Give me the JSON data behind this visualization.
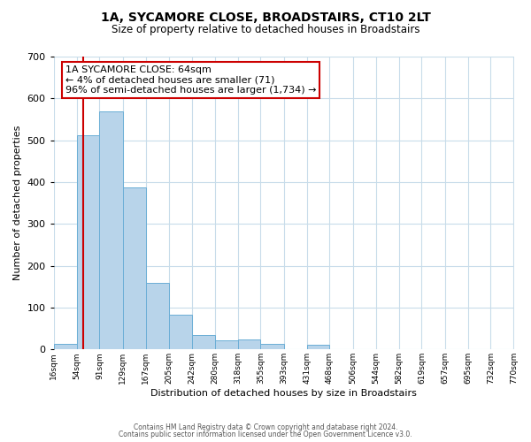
{
  "title": "1A, SYCAMORE CLOSE, BROADSTAIRS, CT10 2LT",
  "subtitle": "Size of property relative to detached houses in Broadstairs",
  "xlabel": "Distribution of detached houses by size in Broadstairs",
  "ylabel": "Number of detached properties",
  "bin_edges": [
    16,
    54,
    91,
    129,
    167,
    205,
    242,
    280,
    318,
    355,
    393,
    431,
    468,
    506,
    544,
    582,
    619,
    657,
    695,
    732,
    770
  ],
  "bin_heights": [
    13,
    511,
    570,
    388,
    160,
    83,
    35,
    22,
    24,
    13,
    0,
    11,
    0,
    0,
    0,
    0,
    0,
    0,
    0,
    0
  ],
  "bar_color": "#b8d4ea",
  "bar_edge_color": "#6baed6",
  "red_line_x": 64,
  "annotation_title": "1A SYCAMORE CLOSE: 64sqm",
  "annotation_line1": "← 4% of detached houses are smaller (71)",
  "annotation_line2": "96% of semi-detached houses are larger (1,734) →",
  "annotation_box_facecolor": "#ffffff",
  "annotation_box_edgecolor": "#cc0000",
  "red_line_color": "#cc0000",
  "ylim": [
    0,
    700
  ],
  "yticks": [
    0,
    100,
    200,
    300,
    400,
    500,
    600,
    700
  ],
  "grid_color": "#c8dcea",
  "footer1": "Contains HM Land Registry data © Crown copyright and database right 2024.",
  "footer2": "Contains public sector information licensed under the Open Government Licence v3.0.",
  "tick_labels": [
    "16sqm",
    "54sqm",
    "91sqm",
    "129sqm",
    "167sqm",
    "205sqm",
    "242sqm",
    "280sqm",
    "318sqm",
    "355sqm",
    "393sqm",
    "431sqm",
    "468sqm",
    "506sqm",
    "544sqm",
    "582sqm",
    "619sqm",
    "657sqm",
    "695sqm",
    "732sqm",
    "770sqm"
  ],
  "title_fontsize": 10,
  "subtitle_fontsize": 8.5,
  "ylabel_fontsize": 8,
  "xlabel_fontsize": 8,
  "ytick_fontsize": 8,
  "xtick_fontsize": 6.5,
  "footer_fontsize": 5.5,
  "ann_fontsize": 8
}
